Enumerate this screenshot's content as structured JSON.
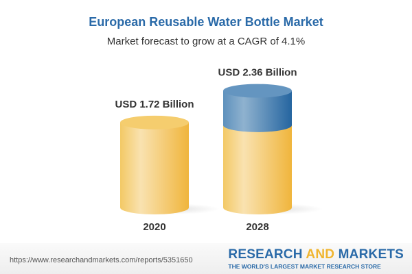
{
  "chart_data": {
    "type": "bar",
    "title": "European Reusable Water Bottle Market",
    "subtitle": "Market forecast to grow at a CAGR of 4.1%",
    "categories": [
      "2020",
      "2028"
    ],
    "values": [
      1.72,
      2.36
    ],
    "data_labels": [
      "USD 1.72 Billion",
      "USD 2.36 Billion"
    ],
    "unit": "USD Billion",
    "style": "3d-cylinder",
    "colors": {
      "base": "#f2c04c",
      "growth": "#3d7aaf"
    },
    "grid": false
  },
  "footer": {
    "url": "https://www.researchandmarkets.com/reports/5351650",
    "brand_part1": "RESEARCH ",
    "brand_part2": "AND",
    "brand_part3": " MARKETS",
    "tagline": "THE WORLD'S LARGEST MARKET RESEARCH STORE"
  }
}
